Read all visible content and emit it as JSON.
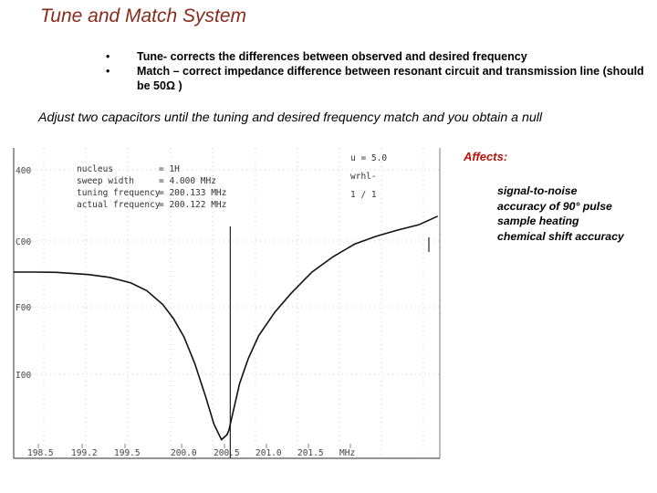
{
  "title": "Tune and Match System",
  "bullets": [
    {
      "marker": "•",
      "text": "Tune- corrects the differences between observed and desired frequency"
    },
    {
      "marker": "•",
      "text": "Match – correct impedance difference between resonant circuit and transmission line (should be 50Ω )"
    }
  ],
  "subtitle": "Adjust two capacitors until the tuning and desired frequency match and you obtain a null",
  "affects": {
    "title": "Affects:",
    "items": [
      "signal-to-noise",
      "accuracy of 90° pulse",
      "sample heating",
      "chemical shift accuracy"
    ]
  },
  "screen": {
    "params": [
      {
        "label": "nucleus",
        "value": "= 1H"
      },
      {
        "label": "sweep width",
        "value": "= 4.000 MHz"
      },
      {
        "label": "tuning frequency",
        "value": "= 200.133 MHz"
      },
      {
        "label": "actual frequency",
        "value": "= 200.122 MHz"
      }
    ],
    "right_text": [
      "u = 5.0",
      "wrhl-",
      "1 / 1"
    ],
    "unit": "MHz"
  },
  "chart_data": {
    "type": "line",
    "title": "",
    "xlabel": "",
    "ylabel": "",
    "x_ticks": [
      "198.5",
      "199.2",
      "199.5",
      "200.0",
      "200.5",
      "201.0",
      "201.5",
      "MHz"
    ],
    "y_ticks": [
      "400",
      "C00",
      "F00",
      "I00"
    ],
    "xlim": [
      198.1,
      202.1
    ],
    "ylim": [
      0,
      1
    ],
    "tuning_marker": 200.133,
    "series": [
      {
        "x": [
          198.1,
          198.3,
          198.5,
          198.8,
          199.0,
          199.2,
          199.35,
          199.5,
          199.6,
          199.7,
          199.8,
          199.9,
          199.98,
          200.05,
          200.1,
          200.12,
          200.16,
          200.22,
          200.3,
          200.4,
          200.55,
          200.7,
          200.9,
          201.1,
          201.3,
          201.5,
          201.7,
          201.9,
          202.08
        ],
        "y": [
          0.6,
          0.6,
          0.599,
          0.592,
          0.583,
          0.565,
          0.54,
          0.495,
          0.45,
          0.39,
          0.305,
          0.2,
          0.11,
          0.06,
          0.075,
          0.09,
          0.15,
          0.24,
          0.32,
          0.395,
          0.47,
          0.53,
          0.6,
          0.65,
          0.69,
          0.715,
          0.735,
          0.752,
          0.78
        ]
      }
    ]
  }
}
